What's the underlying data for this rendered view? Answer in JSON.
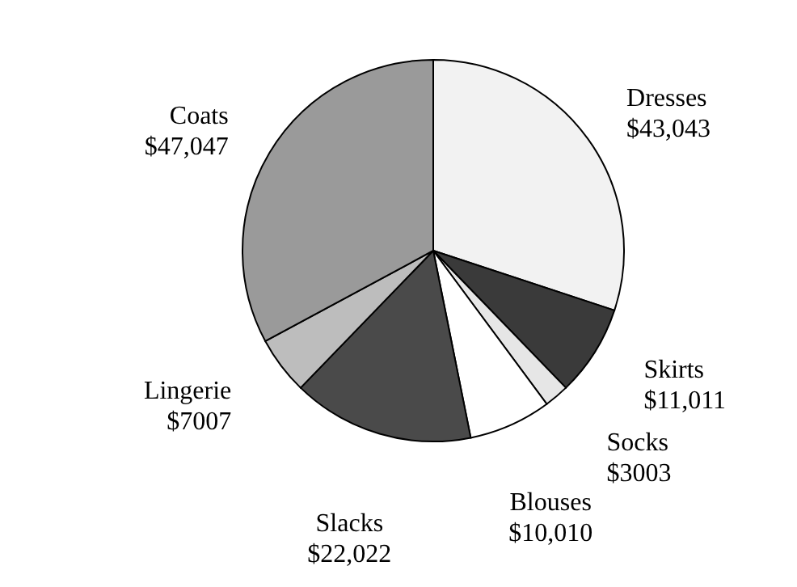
{
  "chart_data": {
    "type": "pie",
    "categories": [
      "Dresses",
      "Skirts",
      "Socks",
      "Blouses",
      "Slacks",
      "Lingerie",
      "Coats"
    ],
    "values": [
      43043,
      11011,
      3003,
      10010,
      22022,
      7007,
      47047
    ],
    "value_labels": [
      "$43,043",
      "$11,011",
      "$3003",
      "$10,010",
      "$22,022",
      "$7007",
      "$47,047"
    ],
    "colors": [
      "#f2f2f2",
      "#3a3a3a",
      "#e6e6e6",
      "#ffffff",
      "#4a4a4a",
      "#bdbdbd",
      "#9a9a9a"
    ]
  }
}
